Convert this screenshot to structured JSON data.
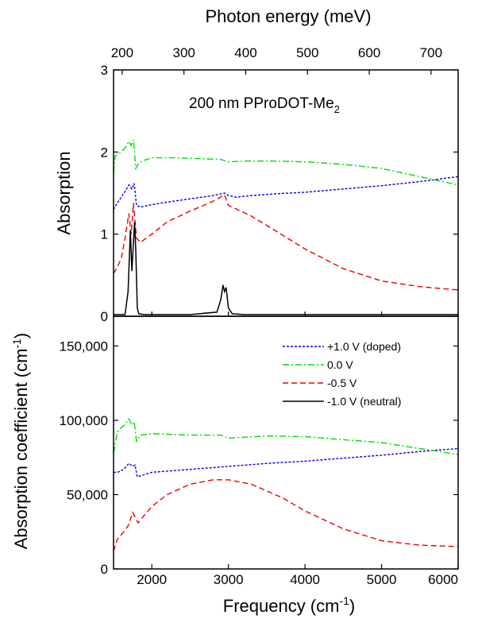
{
  "chart_data": [
    {
      "type": "line",
      "panel": "top",
      "title": "",
      "top_axis_label": "Photon energy (meV)",
      "top_axis_ticks": [
        "200",
        "300",
        "400",
        "500",
        "600",
        "700"
      ],
      "top_axis_tick_values": [
        200,
        300,
        400,
        500,
        600,
        700
      ],
      "ylabel": "Absorption",
      "y_ticks": [
        "0",
        "1",
        "2",
        "3"
      ],
      "y_tick_values": [
        0,
        1,
        2,
        3
      ],
      "xlim": [
        1500,
        6000
      ],
      "ylim": [
        0,
        3
      ],
      "annotation": {
        "main": "200 nm PProDOT-Me",
        "subscript": "2"
      },
      "series": [
        {
          "label": "+1.0 V (doped)",
          "color": "#0000ee",
          "dash": "dotted",
          "x": [
            1500,
            1530,
            1600,
            1650,
            1700,
            1740,
            1770,
            1800,
            1850,
            2000,
            2200,
            2500,
            2800,
            2950,
            3000,
            3100,
            3300,
            3600,
            4000,
            4500,
            5000,
            5500,
            6000
          ],
          "y": [
            1.3,
            1.35,
            1.45,
            1.52,
            1.6,
            1.55,
            1.62,
            1.35,
            1.33,
            1.36,
            1.39,
            1.43,
            1.47,
            1.5,
            1.47,
            1.45,
            1.47,
            1.49,
            1.51,
            1.55,
            1.59,
            1.64,
            1.7
          ]
        },
        {
          "label": "0.0 V",
          "color": "#00dd00",
          "dash": "dashdot",
          "x": [
            1500,
            1520,
            1600,
            1650,
            1700,
            1730,
            1760,
            1790,
            1830,
            1900,
            2000,
            2300,
            2600,
            2900,
            3000,
            3200,
            3600,
            4000,
            4500,
            5000,
            5300,
            5600,
            6000
          ],
          "y": [
            1.75,
            1.95,
            2.0,
            2.05,
            2.13,
            2.08,
            2.15,
            1.8,
            1.87,
            1.9,
            1.93,
            1.93,
            1.92,
            1.91,
            1.88,
            1.89,
            1.89,
            1.88,
            1.85,
            1.8,
            1.74,
            1.68,
            1.6
          ]
        },
        {
          "label": "-0.5 V",
          "color": "#ee0000",
          "dash": "dashed",
          "x": [
            1500,
            1550,
            1600,
            1650,
            1700,
            1730,
            1760,
            1800,
            1850,
            2000,
            2200,
            2500,
            2800,
            2950,
            3000,
            3300,
            3600,
            4000,
            4500,
            5000,
            5500,
            6000
          ],
          "y": [
            0.52,
            0.6,
            0.7,
            0.95,
            1.25,
            1.0,
            1.38,
            0.95,
            0.9,
            1.0,
            1.15,
            1.28,
            1.4,
            1.48,
            1.35,
            1.22,
            1.05,
            0.82,
            0.58,
            0.43,
            0.36,
            0.32
          ]
        },
        {
          "label": "-1.0 V (neutral)",
          "color": "#000000",
          "dash": "solid",
          "x": [
            1500,
            1650,
            1690,
            1720,
            1740,
            1760,
            1775,
            1790,
            1810,
            1830,
            1900,
            2500,
            2850,
            2900,
            2930,
            2950,
            2970,
            3000,
            3050,
            3200,
            4000,
            5000,
            6000
          ],
          "y": [
            0.02,
            0.02,
            0.3,
            1.05,
            0.55,
            0.9,
            1.15,
            0.8,
            0.1,
            0.03,
            0.02,
            0.02,
            0.05,
            0.2,
            0.38,
            0.3,
            0.35,
            0.1,
            0.03,
            0.02,
            0.02,
            0.02,
            0.02
          ]
        }
      ]
    },
    {
      "type": "line",
      "panel": "bottom",
      "title": "",
      "xlabel_main": "Frequency (cm",
      "xlabel_sup": "-1",
      "xlabel_end": ")",
      "ylabel_main": "Absorption coefficient (cm",
      "ylabel_sup": "-1",
      "ylabel_end": ")",
      "x_ticks": [
        "2000",
        "3000",
        "4000",
        "5000",
        "6000"
      ],
      "x_tick_values": [
        2000,
        3000,
        4000,
        5000,
        6000
      ],
      "y_ticks": [
        "0",
        "50,000",
        "100,000",
        "150,000"
      ],
      "y_tick_values": [
        0,
        50000,
        100000,
        150000
      ],
      "xlim": [
        1500,
        6000
      ],
      "ylim": [
        0,
        170000
      ],
      "legend_position": "upper-right",
      "series": [
        {
          "label": "+1.0 V (doped)",
          "color": "#0000ee",
          "dash": "dotted",
          "x": [
            1500,
            1550,
            1600,
            1650,
            1700,
            1750,
            1780,
            1810,
            2000,
            2500,
            3000,
            3500,
            4000,
            4500,
            5000,
            5500,
            6000
          ],
          "y": [
            65000,
            65000,
            66000,
            68000,
            71000,
            69000,
            70000,
            62000,
            65000,
            67000,
            69000,
            71000,
            72500,
            74500,
            76500,
            79000,
            81000
          ]
        },
        {
          "label": "0.0 V",
          "color": "#00dd00",
          "dash": "dashdot",
          "x": [
            1500,
            1550,
            1600,
            1650,
            1700,
            1740,
            1770,
            1800,
            1850,
            2000,
            2500,
            2900,
            3000,
            3500,
            4000,
            4500,
            5000,
            5500,
            6000
          ],
          "y": [
            78000,
            92000,
            95000,
            97000,
            101000,
            97000,
            99000,
            86000,
            90000,
            91000,
            90000,
            90000,
            88000,
            89500,
            89000,
            87000,
            85000,
            81000,
            77000
          ]
        },
        {
          "label": "-0.5 V",
          "color": "#ee0000",
          "dash": "dashed",
          "x": [
            1500,
            1550,
            1600,
            1650,
            1700,
            1750,
            1780,
            1820,
            1900,
            2000,
            2200,
            2500,
            2800,
            3000,
            3300,
            3700,
            4000,
            4500,
            5000,
            5500,
            6000
          ],
          "y": [
            12000,
            20000,
            23000,
            26000,
            30000,
            38000,
            35000,
            31000,
            36000,
            42000,
            50000,
            57000,
            60000,
            60000,
            57000,
            48000,
            39000,
            27000,
            19000,
            16000,
            15000
          ]
        }
      ]
    }
  ],
  "legend": [
    {
      "label": "+1.0 V (doped)",
      "color": "#0000ee",
      "dash": "dotted"
    },
    {
      "label": " 0.0 V",
      "color": "#00dd00",
      "dash": "dashdot"
    },
    {
      "label": "-0.5 V",
      "color": "#ee0000",
      "dash": "dashed"
    },
    {
      "label": "-1.0 V (neutral)",
      "color": "#000000",
      "dash": "solid"
    }
  ]
}
